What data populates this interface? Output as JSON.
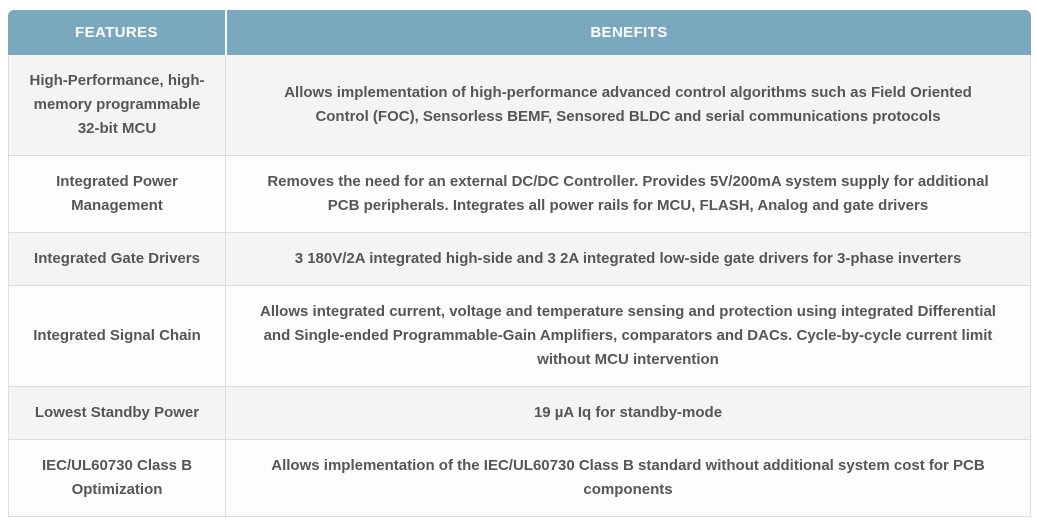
{
  "table": {
    "columns": [
      {
        "label": "FEATURES"
      },
      {
        "label": "BENEFITS"
      }
    ],
    "rows": [
      {
        "feature": "High-Performance, high-memory programmable 32-bit MCU",
        "benefit": "Allows implementation of high-performance advanced control algorithms such as Field Oriented Control (FOC), Sensorless BEMF, Sensored BLDC and serial communications protocols"
      },
      {
        "feature": "Integrated Power Management",
        "benefit": "Removes the need for an external DC/DC Controller. Provides 5V/200mA system supply for additional PCB peripherals. Integrates all power rails for MCU, FLASH, Analog and gate drivers"
      },
      {
        "feature": "Integrated Gate Drivers",
        "benefit": "3 180V/2A integrated high-side and 3 2A integrated low-side gate drivers for 3-phase inverters"
      },
      {
        "feature": "Integrated Signal Chain",
        "benefit": "Allows integrated current, voltage and temperature sensing and protection using integrated Differential and Single-ended Programmable-Gain Amplifiers, comparators and DACs. Cycle-by-cycle current limit without MCU intervention"
      },
      {
        "feature": "Lowest Standby Power",
        "benefit": "19 µA Iq for standby-mode"
      },
      {
        "feature": "IEC/UL60730 Class B Optimization",
        "benefit": "Allows implementation of the IEC/UL60730 Class B standard without additional system cost for PCB components"
      }
    ],
    "colors": {
      "header_bg": "#7aa9bf",
      "header_text": "#ffffff",
      "row_alt_bg": "#f4f4f2",
      "row_bg": "#fdfdfc",
      "body_text": "#54565a",
      "border": "#dcdcdb"
    }
  }
}
